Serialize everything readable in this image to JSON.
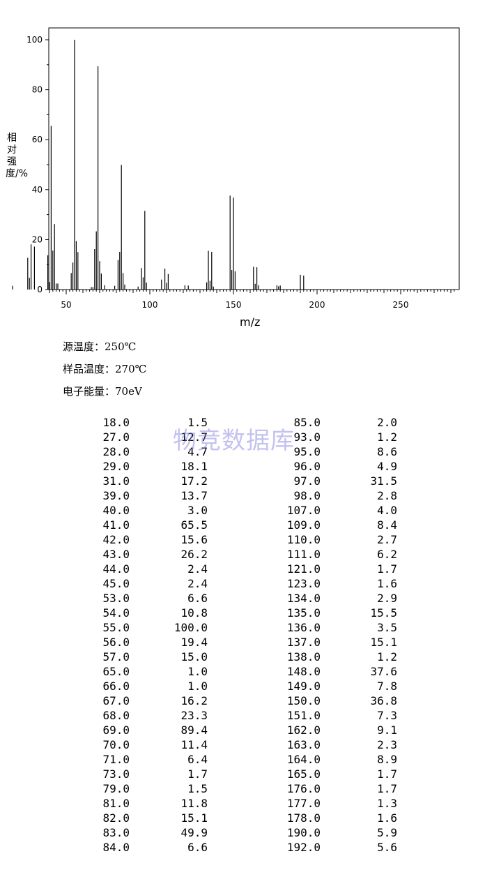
{
  "chart_data": {
    "type": "bar",
    "xlabel": "m/z",
    "ylabel": "相对强度/%",
    "xlim": [
      10,
      285
    ],
    "ylim": [
      0,
      105
    ],
    "xticks": [
      50,
      100,
      150,
      200,
      250
    ],
    "yticks": [
      0,
      20,
      40,
      60,
      80,
      100
    ],
    "x": [
      18,
      27,
      28,
      29,
      31,
      39,
      40,
      41,
      42,
      43,
      44,
      45,
      53,
      54,
      55,
      56,
      57,
      65,
      66,
      67,
      68,
      69,
      70,
      71,
      73,
      79,
      81,
      82,
      83,
      84,
      85,
      93,
      95,
      96,
      97,
      98,
      107,
      109,
      110,
      111,
      121,
      123,
      134,
      135,
      136,
      137,
      138,
      148,
      149,
      150,
      151,
      162,
      163,
      164,
      165,
      176,
      177,
      178,
      190,
      192
    ],
    "values": [
      1.5,
      12.7,
      4.7,
      18.1,
      17.2,
      13.7,
      3.0,
      65.5,
      15.6,
      26.2,
      2.4,
      2.4,
      6.6,
      10.8,
      100.0,
      19.4,
      15.0,
      1.0,
      1.0,
      16.2,
      23.3,
      89.4,
      11.4,
      6.4,
      1.7,
      1.5,
      11.8,
      15.1,
      49.9,
      6.6,
      2.0,
      1.2,
      8.6,
      4.9,
      31.5,
      2.8,
      4.0,
      8.4,
      2.7,
      6.2,
      1.7,
      1.6,
      2.9,
      15.5,
      3.5,
      15.1,
      1.2,
      37.6,
      7.8,
      36.8,
      7.3,
      9.1,
      2.3,
      8.9,
      1.7,
      1.7,
      1.3,
      1.6,
      5.9,
      5.6
    ],
    "grid": false
  },
  "conditions": {
    "source_temp": "源温度：250℃",
    "sample_temp": "样品温度：270℃",
    "electron_energy": "电子能量：70eV"
  },
  "watermark": "物竞数据库",
  "table": {
    "rows": [
      [
        "18.0",
        "1.5",
        "85.0",
        "2.0"
      ],
      [
        "27.0",
        "12.7",
        "93.0",
        "1.2"
      ],
      [
        "28.0",
        "4.7",
        "95.0",
        "8.6"
      ],
      [
        "29.0",
        "18.1",
        "96.0",
        "4.9"
      ],
      [
        "31.0",
        "17.2",
        "97.0",
        "31.5"
      ],
      [
        "39.0",
        "13.7",
        "98.0",
        "2.8"
      ],
      [
        "40.0",
        "3.0",
        "107.0",
        "4.0"
      ],
      [
        "41.0",
        "65.5",
        "109.0",
        "8.4"
      ],
      [
        "42.0",
        "15.6",
        "110.0",
        "2.7"
      ],
      [
        "43.0",
        "26.2",
        "111.0",
        "6.2"
      ],
      [
        "44.0",
        "2.4",
        "121.0",
        "1.7"
      ],
      [
        "45.0",
        "2.4",
        "123.0",
        "1.6"
      ],
      [
        "53.0",
        "6.6",
        "134.0",
        "2.9"
      ],
      [
        "54.0",
        "10.8",
        "135.0",
        "15.5"
      ],
      [
        "55.0",
        "100.0",
        "136.0",
        "3.5"
      ],
      [
        "56.0",
        "19.4",
        "137.0",
        "15.1"
      ],
      [
        "57.0",
        "15.0",
        "138.0",
        "1.2"
      ],
      [
        "65.0",
        "1.0",
        "148.0",
        "37.6"
      ],
      [
        "66.0",
        "1.0",
        "149.0",
        "7.8"
      ],
      [
        "67.0",
        "16.2",
        "150.0",
        "36.8"
      ],
      [
        "68.0",
        "23.3",
        "151.0",
        "7.3"
      ],
      [
        "69.0",
        "89.4",
        "162.0",
        "9.1"
      ],
      [
        "70.0",
        "11.4",
        "163.0",
        "2.3"
      ],
      [
        "71.0",
        "6.4",
        "164.0",
        "8.9"
      ],
      [
        "73.0",
        "1.7",
        "165.0",
        "1.7"
      ],
      [
        "79.0",
        "1.5",
        "176.0",
        "1.7"
      ],
      [
        "81.0",
        "11.8",
        "177.0",
        "1.3"
      ],
      [
        "82.0",
        "15.1",
        "178.0",
        "1.6"
      ],
      [
        "83.0",
        "49.9",
        "190.0",
        "5.9"
      ],
      [
        "84.0",
        "6.6",
        "192.0",
        "5.6"
      ]
    ]
  }
}
